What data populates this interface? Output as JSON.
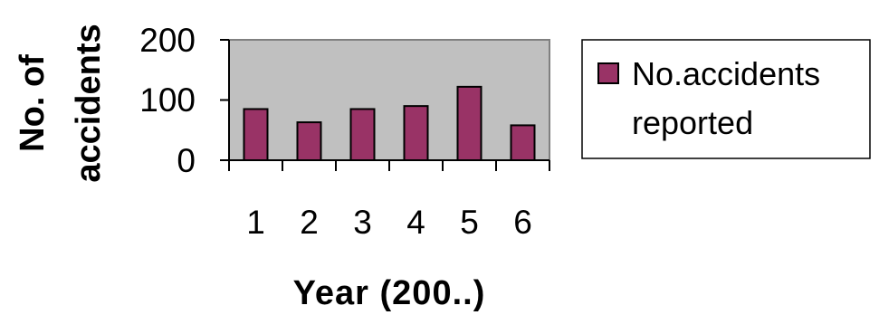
{
  "chart_data": {
    "type": "bar",
    "categories": [
      "1",
      "2",
      "3",
      "4",
      "5",
      "6"
    ],
    "series": [
      {
        "name": "No.accidents reported",
        "values": [
          85,
          63,
          85,
          90,
          122,
          58
        ]
      }
    ],
    "ylabel": "No. of accidents",
    "xlabel": "Year (200..)",
    "ylim": [
      0,
      200
    ],
    "yticks": [
      "0",
      "100",
      "200"
    ],
    "legend_position": "right",
    "grid": false,
    "colors": {
      "plot_background": "#c0c0c0",
      "bar_fill": "#993366",
      "bar_stroke": "#000000"
    }
  }
}
